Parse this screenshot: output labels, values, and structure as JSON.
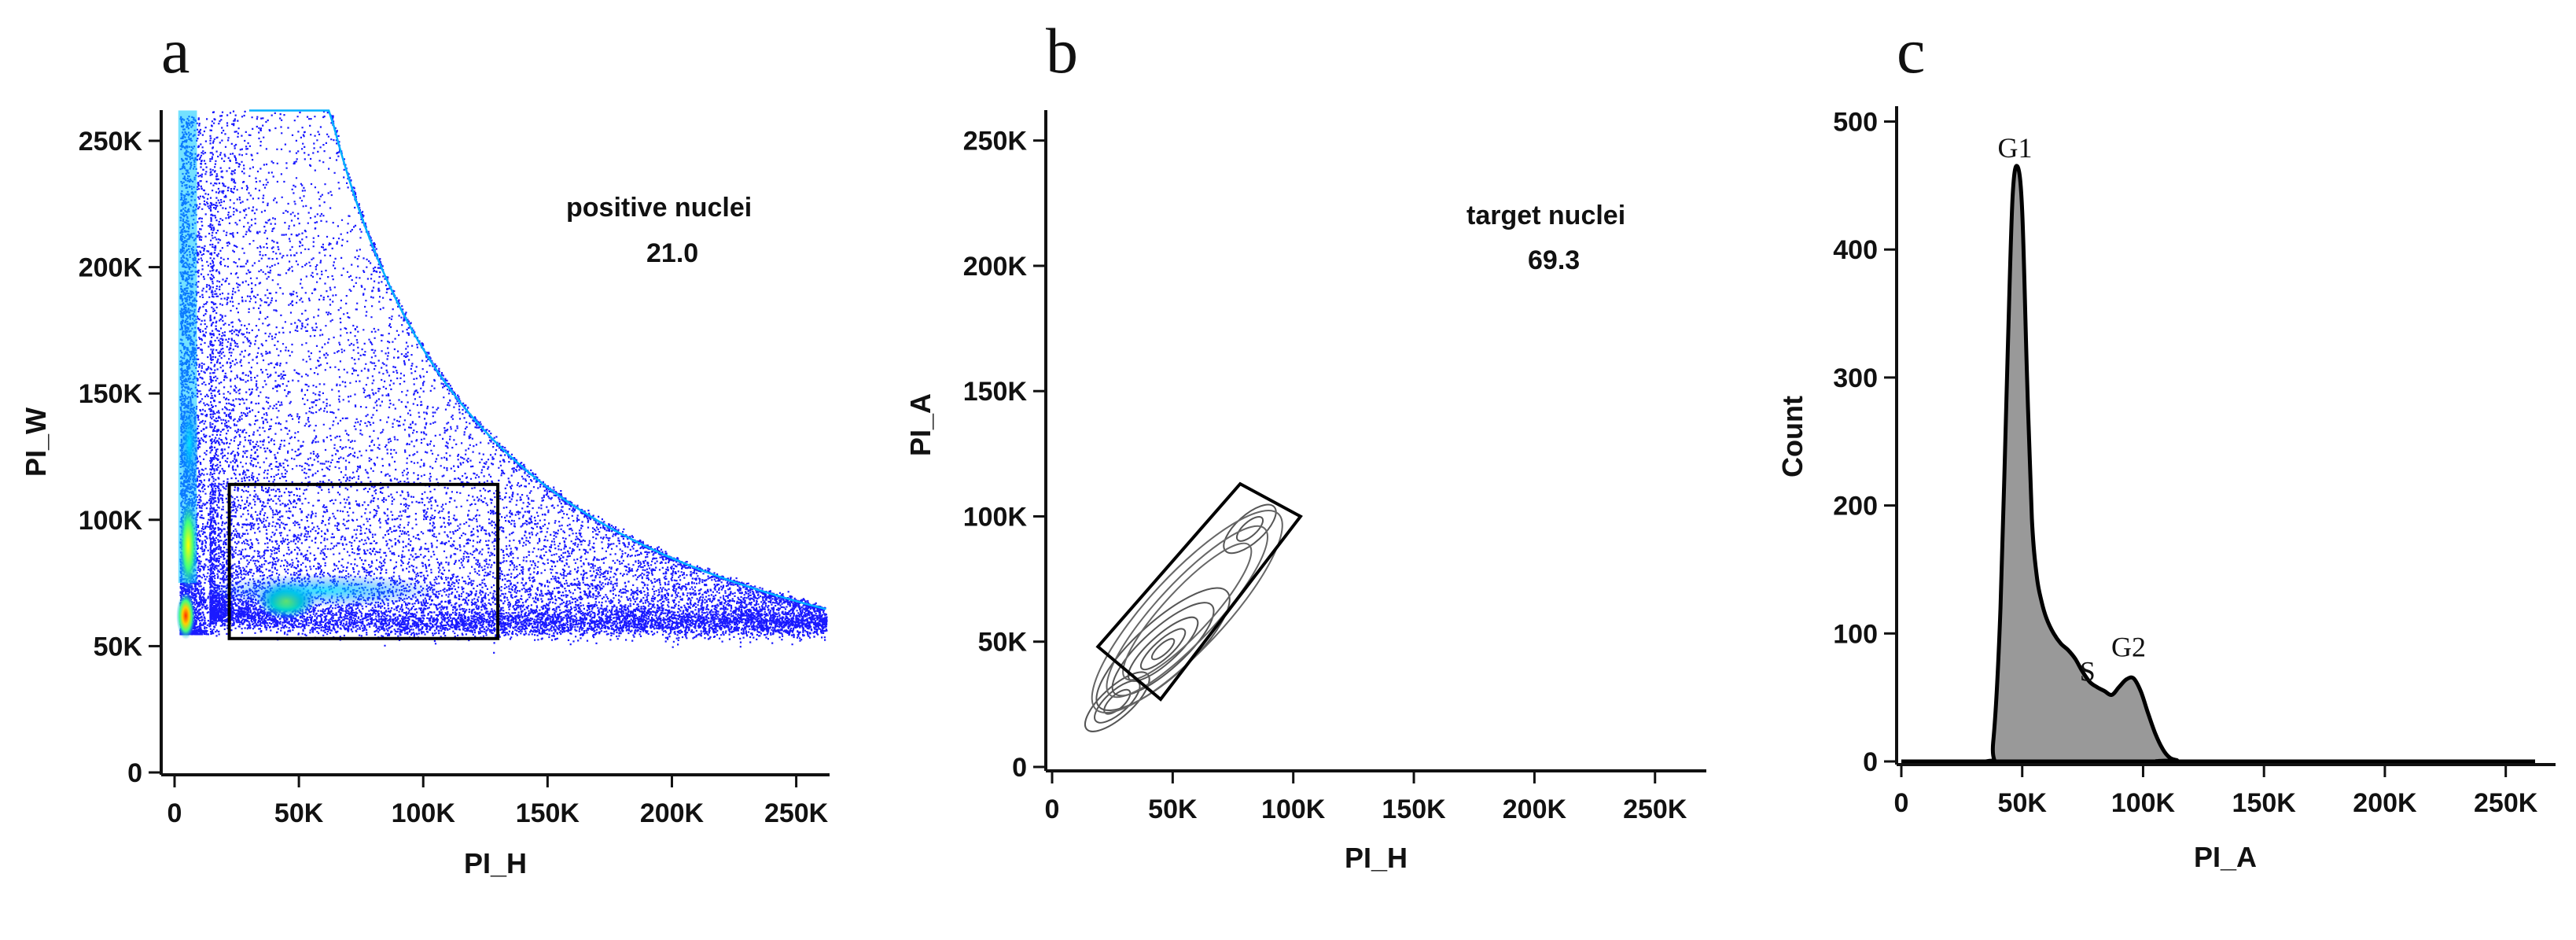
{
  "chart_data": [
    {
      "panel": "a",
      "type": "scatter",
      "xlabel": "PI_H",
      "ylabel": "PI_W",
      "xlim": [
        0,
        262144
      ],
      "ylim": [
        0,
        262144
      ],
      "x_ticks": [
        "0",
        "50K",
        "100K",
        "150K",
        "200K",
        "250K"
      ],
      "y_ticks": [
        "0",
        "50K",
        "100K",
        "150K",
        "200K",
        "250K"
      ],
      "x_tick_values": [
        0,
        50000,
        100000,
        150000,
        200000,
        250000
      ],
      "y_tick_values": [
        0,
        50000,
        100000,
        150000,
        200000,
        250000
      ],
      "colormap": [
        "#0000ff",
        "#00a0ff",
        "#00ff80",
        "#ffff00",
        "#ff4000"
      ],
      "gate": {
        "name": "positive nuclei",
        "value": "21.0",
        "rect": {
          "x": [
            22000,
            130000
          ],
          "y": [
            53000,
            114000
          ]
        }
      },
      "density": [
        {
          "x": 4500,
          "y": 62000,
          "level": 4
        },
        {
          "x": 5500,
          "y": 90000,
          "level": 3
        },
        {
          "x": 6000,
          "y": 130000,
          "level": 2
        },
        {
          "x": 45000,
          "y": 68000,
          "level": 3
        }
      ]
    },
    {
      "panel": "b",
      "type": "contour",
      "xlabel": "PI_H",
      "ylabel": "PI_A",
      "xlim": [
        0,
        262144
      ],
      "ylim": [
        0,
        262144
      ],
      "x_ticks": [
        "0",
        "50K",
        "100K",
        "150K",
        "200K",
        "250K"
      ],
      "y_ticks": [
        "0",
        "50K",
        "100K",
        "150K",
        "200K",
        "250K"
      ],
      "x_tick_values": [
        0,
        50000,
        100000,
        150000,
        200000,
        250000
      ],
      "y_tick_values": [
        0,
        50000,
        100000,
        150000,
        200000,
        250000
      ],
      "gate": {
        "name": "target nuclei",
        "value": "69.3",
        "polygon": [
          [
            19000,
            48000
          ],
          [
            78000,
            113000
          ],
          [
            103000,
            100000
          ],
          [
            45000,
            27000
          ]
        ]
      },
      "populations": [
        {
          "x": 46000,
          "y": 47000,
          "rx": [
            3500,
            7000,
            11000,
            16000,
            21000
          ],
          "ry": [
            1800,
            3200,
            5000,
            7500,
            10000
          ]
        },
        {
          "x": 27000,
          "y": 26000,
          "rx": [
            4000,
            7000,
            10000
          ],
          "ry": [
            2500,
            4000,
            5500
          ]
        },
        {
          "x": 82000,
          "y": 95000,
          "rx": [
            4000,
            8000
          ],
          "ry": [
            2500,
            5000
          ]
        }
      ]
    },
    {
      "panel": "c",
      "type": "area",
      "xlabel": "PI_A",
      "ylabel": "Count",
      "xlim": [
        0,
        262144
      ],
      "ylim": [
        0,
        512
      ],
      "x_ticks": [
        "0",
        "50K",
        "100K",
        "150K",
        "200K",
        "250K"
      ],
      "y_ticks": [
        "0",
        "100",
        "200",
        "300",
        "400",
        "500"
      ],
      "x_tick_values": [
        0,
        50000,
        100000,
        150000,
        200000,
        250000
      ],
      "y_tick_values": [
        0,
        100,
        200,
        300,
        400,
        500
      ],
      "fill_color": "#999999",
      "x": [
        0,
        35000,
        38000,
        41000,
        44000,
        46000,
        48000,
        50000,
        52000,
        54000,
        56000,
        58000,
        60000,
        63000,
        66000,
        69000,
        72000,
        75000,
        78000,
        81000,
        84000,
        87000,
        90000,
        93000,
        96000,
        99000,
        102000,
        105000,
        108000,
        111000,
        114000,
        117000,
        262144
      ],
      "values": [
        0,
        0,
        15,
        120,
        320,
        440,
        465,
        430,
        300,
        190,
        145,
        125,
        112,
        100,
        92,
        87,
        80,
        70,
        62,
        58,
        55,
        52,
        58,
        64,
        65,
        55,
        38,
        22,
        10,
        3,
        1,
        0,
        0
      ],
      "annotations": [
        {
          "text": "G1",
          "x": 47000,
          "y": 472
        },
        {
          "text": "S",
          "x": 77000,
          "y": 63
        },
        {
          "text": "G2",
          "x": 94000,
          "y": 82
        }
      ]
    }
  ]
}
